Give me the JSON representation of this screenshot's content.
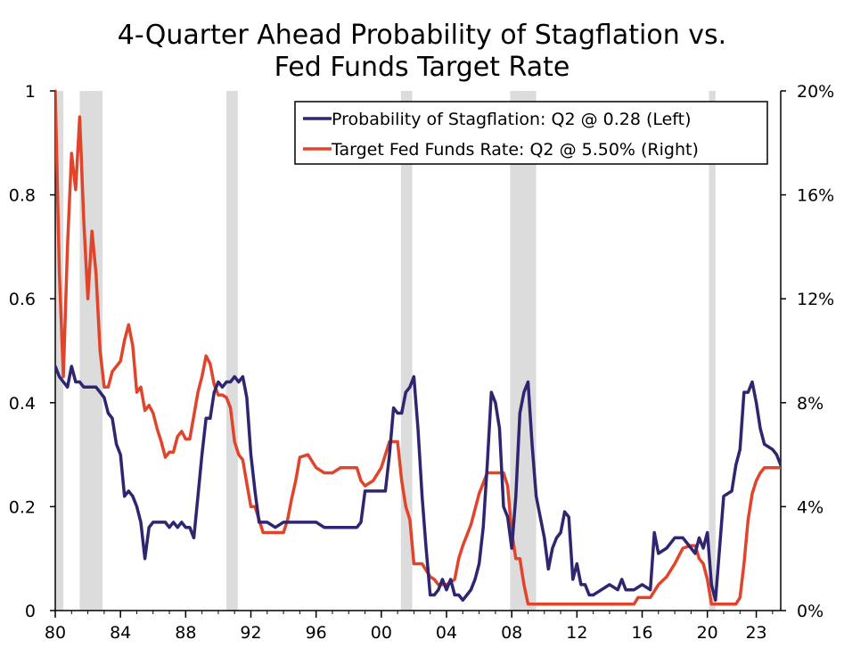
{
  "chart_data": {
    "type": "line",
    "title_lines": [
      "4-Quarter Ahead Probability of Stagflation vs.",
      "Fed Funds Target Rate"
    ],
    "x_tick_labels": [
      "80",
      "84",
      "88",
      "92",
      "96",
      "00",
      "04",
      "08",
      "12",
      "16",
      "20",
      "23"
    ],
    "x_tick_years": [
      1980,
      1984,
      1988,
      1992,
      1996,
      2000,
      2004,
      2008,
      2012,
      2016,
      2020,
      2023
    ],
    "xlim": [
      1980,
      2024.5
    ],
    "left_axis": {
      "ylim": [
        0,
        1
      ],
      "ticks": [
        0,
        0.2,
        0.4,
        0.6,
        0.8,
        1
      ],
      "tick_labels": [
        "0",
        "0.2",
        "0.4",
        "0.6",
        "0.8",
        "1"
      ]
    },
    "right_axis": {
      "ylim": [
        0,
        20
      ],
      "ticks": [
        0,
        4,
        8,
        12,
        16,
        20
      ],
      "tick_labels": [
        "0%",
        "4%",
        "8%",
        "12%",
        "16%",
        "20%"
      ]
    },
    "recessions": [
      [
        1980.0,
        1980.5
      ],
      [
        1981.5,
        1982.9
      ],
      [
        1990.5,
        1991.2
      ],
      [
        2001.2,
        2001.9
      ],
      [
        2007.9,
        2009.5
      ],
      [
        2020.1,
        2020.5
      ]
    ],
    "recession_color": "#dcdcdc",
    "series": [
      {
        "name": "Probability of Stagflation: Q2 @ 0.28 (Left)",
        "axis": "left",
        "color": "#2e2670",
        "points": [
          [
            1980.0,
            0.47
          ],
          [
            1980.25,
            0.45
          ],
          [
            1980.5,
            0.44
          ],
          [
            1980.75,
            0.43
          ],
          [
            1981.0,
            0.47
          ],
          [
            1981.25,
            0.44
          ],
          [
            1981.5,
            0.44
          ],
          [
            1981.75,
            0.43
          ],
          [
            1982.0,
            0.43
          ],
          [
            1982.25,
            0.43
          ],
          [
            1982.5,
            0.43
          ],
          [
            1982.75,
            0.42
          ],
          [
            1983.0,
            0.41
          ],
          [
            1983.25,
            0.38
          ],
          [
            1983.5,
            0.37
          ],
          [
            1983.75,
            0.32
          ],
          [
            1984.0,
            0.3
          ],
          [
            1984.25,
            0.22
          ],
          [
            1984.5,
            0.23
          ],
          [
            1984.75,
            0.22
          ],
          [
            1985.0,
            0.2
          ],
          [
            1985.25,
            0.17
          ],
          [
            1985.5,
            0.1
          ],
          [
            1985.75,
            0.16
          ],
          [
            1986.0,
            0.17
          ],
          [
            1986.25,
            0.17
          ],
          [
            1986.5,
            0.17
          ],
          [
            1986.75,
            0.17
          ],
          [
            1987.0,
            0.16
          ],
          [
            1987.25,
            0.17
          ],
          [
            1987.5,
            0.16
          ],
          [
            1987.75,
            0.17
          ],
          [
            1988.0,
            0.16
          ],
          [
            1988.25,
            0.16
          ],
          [
            1988.5,
            0.14
          ],
          [
            1988.75,
            0.22
          ],
          [
            1989.0,
            0.3
          ],
          [
            1989.25,
            0.37
          ],
          [
            1989.5,
            0.37
          ],
          [
            1989.75,
            0.42
          ],
          [
            1990.0,
            0.44
          ],
          [
            1990.25,
            0.43
          ],
          [
            1990.5,
            0.44
          ],
          [
            1990.75,
            0.44
          ],
          [
            1991.0,
            0.45
          ],
          [
            1991.25,
            0.44
          ],
          [
            1991.5,
            0.45
          ],
          [
            1991.75,
            0.41
          ],
          [
            1992.0,
            0.3
          ],
          [
            1992.25,
            0.23
          ],
          [
            1992.5,
            0.17
          ],
          [
            1992.75,
            0.17
          ],
          [
            1993.0,
            0.17
          ],
          [
            1993.5,
            0.16
          ],
          [
            1994.0,
            0.17
          ],
          [
            1994.5,
            0.17
          ],
          [
            1995.0,
            0.17
          ],
          [
            1995.5,
            0.17
          ],
          [
            1996.0,
            0.17
          ],
          [
            1996.5,
            0.16
          ],
          [
            1997.0,
            0.16
          ],
          [
            1997.5,
            0.16
          ],
          [
            1998.0,
            0.16
          ],
          [
            1998.5,
            0.16
          ],
          [
            1998.75,
            0.17
          ],
          [
            1999.0,
            0.23
          ],
          [
            1999.5,
            0.23
          ],
          [
            2000.0,
            0.23
          ],
          [
            2000.25,
            0.23
          ],
          [
            2000.5,
            0.3
          ],
          [
            2000.75,
            0.39
          ],
          [
            2001.0,
            0.38
          ],
          [
            2001.25,
            0.38
          ],
          [
            2001.5,
            0.42
          ],
          [
            2001.75,
            0.43
          ],
          [
            2002.0,
            0.45
          ],
          [
            2002.25,
            0.35
          ],
          [
            2002.5,
            0.22
          ],
          [
            2002.75,
            0.12
          ],
          [
            2003.0,
            0.03
          ],
          [
            2003.25,
            0.03
          ],
          [
            2003.5,
            0.04
          ],
          [
            2003.75,
            0.06
          ],
          [
            2004.0,
            0.04
          ],
          [
            2004.25,
            0.06
          ],
          [
            2004.5,
            0.03
          ],
          [
            2004.75,
            0.03
          ],
          [
            2005.0,
            0.02
          ],
          [
            2005.25,
            0.03
          ],
          [
            2005.5,
            0.04
          ],
          [
            2005.75,
            0.06
          ],
          [
            2006.0,
            0.09
          ],
          [
            2006.25,
            0.16
          ],
          [
            2006.5,
            0.28
          ],
          [
            2006.75,
            0.42
          ],
          [
            2007.0,
            0.4
          ],
          [
            2007.25,
            0.35
          ],
          [
            2007.5,
            0.2
          ],
          [
            2007.75,
            0.18
          ],
          [
            2008.0,
            0.12
          ],
          [
            2008.25,
            0.22
          ],
          [
            2008.5,
            0.38
          ],
          [
            2008.75,
            0.42
          ],
          [
            2009.0,
            0.44
          ],
          [
            2009.25,
            0.32
          ],
          [
            2009.5,
            0.22
          ],
          [
            2009.75,
            0.18
          ],
          [
            2010.0,
            0.14
          ],
          [
            2010.25,
            0.08
          ],
          [
            2010.5,
            0.12
          ],
          [
            2010.75,
            0.14
          ],
          [
            2011.0,
            0.15
          ],
          [
            2011.25,
            0.19
          ],
          [
            2011.5,
            0.18
          ],
          [
            2011.75,
            0.06
          ],
          [
            2012.0,
            0.09
          ],
          [
            2012.25,
            0.05
          ],
          [
            2012.5,
            0.05
          ],
          [
            2012.75,
            0.03
          ],
          [
            2013.0,
            0.03
          ],
          [
            2013.5,
            0.04
          ],
          [
            2014.0,
            0.05
          ],
          [
            2014.5,
            0.04
          ],
          [
            2014.75,
            0.06
          ],
          [
            2015.0,
            0.04
          ],
          [
            2015.5,
            0.04
          ],
          [
            2016.0,
            0.05
          ],
          [
            2016.5,
            0.04
          ],
          [
            2016.75,
            0.15
          ],
          [
            2017.0,
            0.11
          ],
          [
            2017.5,
            0.12
          ],
          [
            2018.0,
            0.14
          ],
          [
            2018.5,
            0.14
          ],
          [
            2019.0,
            0.12
          ],
          [
            2019.25,
            0.11
          ],
          [
            2019.5,
            0.14
          ],
          [
            2019.75,
            0.12
          ],
          [
            2020.0,
            0.15
          ],
          [
            2020.25,
            0.05
          ],
          [
            2020.5,
            0.02
          ],
          [
            2020.75,
            0.12
          ],
          [
            2021.0,
            0.22
          ],
          [
            2021.5,
            0.23
          ],
          [
            2021.75,
            0.28
          ],
          [
            2022.0,
            0.31
          ],
          [
            2022.25,
            0.42
          ],
          [
            2022.5,
            0.42
          ],
          [
            2022.75,
            0.44
          ],
          [
            2023.0,
            0.4
          ],
          [
            2023.25,
            0.35
          ],
          [
            2023.5,
            0.32
          ],
          [
            2024.0,
            0.31
          ],
          [
            2024.25,
            0.3
          ],
          [
            2024.5,
            0.28
          ]
        ]
      },
      {
        "name": "Target Fed Funds Rate: Q2 @ 5.50% (Right)",
        "axis": "right",
        "color": "#e0452c",
        "points": [
          [
            1980.0,
            20.0
          ],
          [
            1980.25,
            13.0
          ],
          [
            1980.5,
            9.0
          ],
          [
            1980.75,
            14.0
          ],
          [
            1981.0,
            17.6
          ],
          [
            1981.25,
            16.2
          ],
          [
            1981.5,
            19.0
          ],
          [
            1981.75,
            15.0
          ],
          [
            1982.0,
            12.0
          ],
          [
            1982.25,
            14.6
          ],
          [
            1982.5,
            13.0
          ],
          [
            1982.75,
            10.0
          ],
          [
            1983.0,
            8.6
          ],
          [
            1983.25,
            8.6
          ],
          [
            1983.5,
            9.2
          ],
          [
            1983.75,
            9.4
          ],
          [
            1984.0,
            9.6
          ],
          [
            1984.25,
            10.4
          ],
          [
            1984.5,
            11.0
          ],
          [
            1984.75,
            10.2
          ],
          [
            1985.0,
            8.4
          ],
          [
            1985.25,
            8.6
          ],
          [
            1985.5,
            7.7
          ],
          [
            1985.75,
            7.9
          ],
          [
            1986.0,
            7.6
          ],
          [
            1986.25,
            7.0
          ],
          [
            1986.5,
            6.5
          ],
          [
            1986.75,
            5.9
          ],
          [
            1987.0,
            6.1
          ],
          [
            1987.25,
            6.1
          ],
          [
            1987.5,
            6.7
          ],
          [
            1987.75,
            6.9
          ],
          [
            1988.0,
            6.6
          ],
          [
            1988.25,
            6.6
          ],
          [
            1988.5,
            7.5
          ],
          [
            1988.75,
            8.4
          ],
          [
            1989.0,
            9.0
          ],
          [
            1989.25,
            9.8
          ],
          [
            1989.5,
            9.5
          ],
          [
            1989.75,
            8.7
          ],
          [
            1990.0,
            8.3
          ],
          [
            1990.25,
            8.3
          ],
          [
            1990.5,
            8.2
          ],
          [
            1990.75,
            7.8
          ],
          [
            1991.0,
            6.5
          ],
          [
            1991.25,
            6.0
          ],
          [
            1991.5,
            5.8
          ],
          [
            1991.75,
            4.9
          ],
          [
            1992.0,
            4.0
          ],
          [
            1992.25,
            4.0
          ],
          [
            1992.5,
            3.5
          ],
          [
            1992.75,
            3.0
          ],
          [
            1993.0,
            3.0
          ],
          [
            1993.5,
            3.0
          ],
          [
            1994.0,
            3.0
          ],
          [
            1994.25,
            3.5
          ],
          [
            1994.5,
            4.3
          ],
          [
            1994.75,
            5.0
          ],
          [
            1995.0,
            5.9
          ],
          [
            1995.5,
            6.0
          ],
          [
            1996.0,
            5.5
          ],
          [
            1996.5,
            5.3
          ],
          [
            1997.0,
            5.3
          ],
          [
            1997.5,
            5.5
          ],
          [
            1998.0,
            5.5
          ],
          [
            1998.5,
            5.5
          ],
          [
            1998.75,
            5.0
          ],
          [
            1999.0,
            4.8
          ],
          [
            1999.5,
            5.0
          ],
          [
            2000.0,
            5.5
          ],
          [
            2000.5,
            6.5
          ],
          [
            2001.0,
            6.5
          ],
          [
            2001.25,
            5.0
          ],
          [
            2001.5,
            4.0
          ],
          [
            2001.75,
            3.5
          ],
          [
            2002.0,
            1.8
          ],
          [
            2002.5,
            1.8
          ],
          [
            2003.0,
            1.3
          ],
          [
            2003.25,
            1.2
          ],
          [
            2003.5,
            1.0
          ],
          [
            2004.0,
            1.0
          ],
          [
            2004.5,
            1.2
          ],
          [
            2004.75,
            2.0
          ],
          [
            2005.0,
            2.5
          ],
          [
            2005.5,
            3.3
          ],
          [
            2006.0,
            4.5
          ],
          [
            2006.5,
            5.3
          ],
          [
            2007.0,
            5.3
          ],
          [
            2007.5,
            5.3
          ],
          [
            2007.75,
            4.8
          ],
          [
            2008.0,
            3.0
          ],
          [
            2008.25,
            2.0
          ],
          [
            2008.5,
            2.0
          ],
          [
            2008.75,
            1.0
          ],
          [
            2009.0,
            0.25
          ],
          [
            2010.0,
            0.25
          ],
          [
            2012.0,
            0.25
          ],
          [
            2014.0,
            0.25
          ],
          [
            2015.5,
            0.25
          ],
          [
            2015.75,
            0.5
          ],
          [
            2016.5,
            0.5
          ],
          [
            2017.0,
            1.0
          ],
          [
            2017.5,
            1.3
          ],
          [
            2018.0,
            1.8
          ],
          [
            2018.5,
            2.4
          ],
          [
            2019.0,
            2.5
          ],
          [
            2019.25,
            2.5
          ],
          [
            2019.5,
            2.0
          ],
          [
            2019.75,
            1.8
          ],
          [
            2020.0,
            1.2
          ],
          [
            2020.25,
            0.25
          ],
          [
            2021.0,
            0.25
          ],
          [
            2021.75,
            0.25
          ],
          [
            2022.0,
            0.5
          ],
          [
            2022.25,
            1.8
          ],
          [
            2022.5,
            3.5
          ],
          [
            2022.75,
            4.5
          ],
          [
            2023.0,
            5.0
          ],
          [
            2023.25,
            5.3
          ],
          [
            2023.5,
            5.5
          ],
          [
            2024.5,
            5.5
          ]
        ]
      }
    ],
    "legend_position": "top-right"
  }
}
